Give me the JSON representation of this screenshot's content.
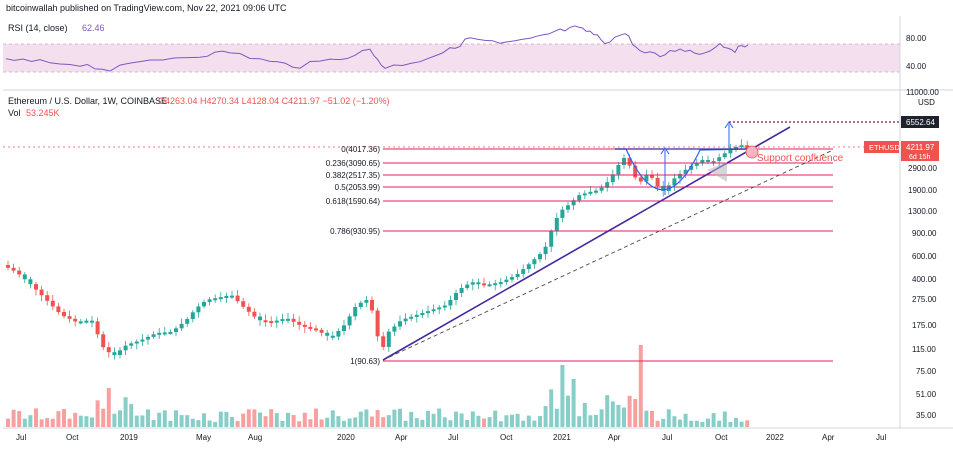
{
  "header": {
    "published": "bitcoinwallah published on TradingView.com, Nov 22, 2021 09:06 UTC"
  },
  "rsi": {
    "label": "RSI (14, close)",
    "value": "62.46",
    "ticks": [
      "80.00",
      "40.00"
    ]
  },
  "main": {
    "title": "Ethereum / U.S. Dollar, 1W, COINBASE",
    "ohlc": "O4263.04  H4270.34  L4128.04  C4211.97  −51.02 (−1.20%)",
    "vol_label": "Vol",
    "vol_value": "53.245K",
    "currency": "USD",
    "top_tick": "11000.00"
  },
  "colors": {
    "up": "#26a69a",
    "down": "#ef5350",
    "rsi_line": "#7e57c2",
    "rsi_band": "#f3dfee",
    "fib": "#e91e63",
    "trend": "#4527a0",
    "pattern": "#2962ff"
  },
  "chart_data": {
    "type": "candlestick",
    "scale": "log",
    "y_ticks": [
      "2900.00",
      "1900.00",
      "1300.00",
      "900.00",
      "600.00",
      "400.00",
      "275.00",
      "175.00",
      "115.00",
      "75.00",
      "51.00",
      "35.00"
    ],
    "x_ticks": [
      "Jul",
      "Oct",
      "2019",
      "May",
      "Aug",
      "2020",
      "Apr",
      "Jul",
      "Oct",
      "2021",
      "Apr",
      "Jul",
      "Oct",
      "2022",
      "Apr",
      "Jul"
    ],
    "fib_levels": [
      {
        "label": "0(4017.36)",
        "value": 4017.36
      },
      {
        "label": "0.236(3090.65)",
        "value": 3090.65
      },
      {
        "label": "0.382(2517.35)",
        "value": 2517.35
      },
      {
        "label": "0.5(2053.99)",
        "value": 2053.99
      },
      {
        "label": "0.618(1590.64)",
        "value": 1590.64
      },
      {
        "label": "0.786(930.95)",
        "value": 930.95
      },
      {
        "label": "1(90.63)",
        "value": 90.63
      }
    ],
    "target_price": "6552.64",
    "last_price": {
      "symbol": "ETHUSD",
      "price": "4211.97",
      "countdown": "6d 15h"
    },
    "annotation": "Support confluence"
  }
}
